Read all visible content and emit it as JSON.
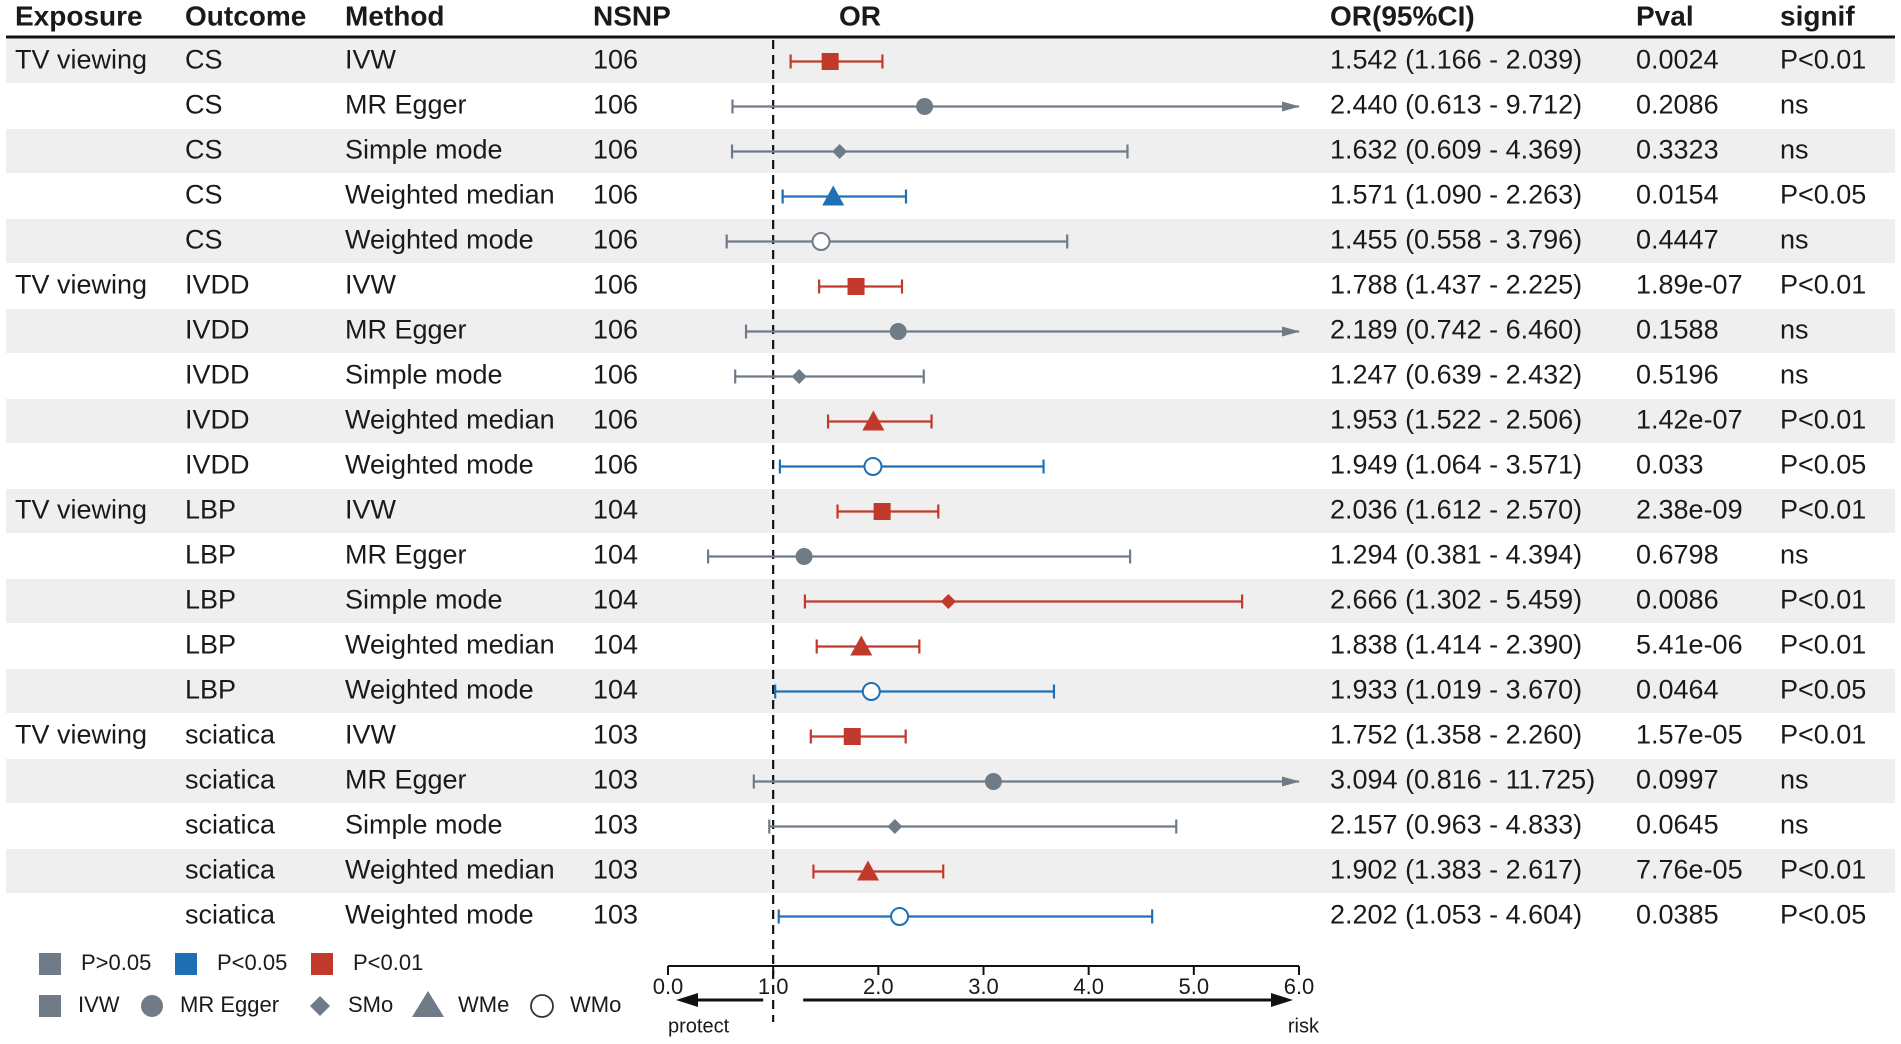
{
  "chart_data": {
    "type": "forest",
    "headers": {
      "exposure": "Exposure",
      "outcome": "Outcome",
      "method": "Method",
      "nsnp": "NSNP",
      "or": "OR",
      "or_ci": "OR(95%CI)",
      "pval": "Pval",
      "signif": "signif"
    },
    "rows": [
      {
        "exposure": "TV viewing",
        "outcome": "CS",
        "method": "IVW",
        "nsnp": "106",
        "or": 1.542,
        "lo": 1.166,
        "hi": 2.039,
        "or_ci": "1.542 (1.166 - 2.039)",
        "pval": "0.0024",
        "signif": "P<0.01",
        "shape": "square",
        "sig_class": "p01"
      },
      {
        "exposure": "",
        "outcome": "CS",
        "method": "MR Egger",
        "nsnp": "106",
        "or": 2.44,
        "lo": 0.613,
        "hi": 9.712,
        "or_ci": "2.440 (0.613 - 9.712)",
        "pval": "0.2086",
        "signif": "ns",
        "shape": "circle",
        "sig_class": "ns"
      },
      {
        "exposure": "",
        "outcome": "CS",
        "method": "Simple mode",
        "nsnp": "106",
        "or": 1.632,
        "lo": 0.609,
        "hi": 4.369,
        "or_ci": "1.632 (0.609 - 4.369)",
        "pval": "0.3323",
        "signif": "ns",
        "shape": "diamond",
        "sig_class": "ns"
      },
      {
        "exposure": "",
        "outcome": "CS",
        "method": "Weighted median",
        "nsnp": "106",
        "or": 1.571,
        "lo": 1.09,
        "hi": 2.263,
        "or_ci": "1.571 (1.090 - 2.263)",
        "pval": "0.0154",
        "signif": "P<0.05",
        "shape": "triangle",
        "sig_class": "p05"
      },
      {
        "exposure": "",
        "outcome": "CS",
        "method": "Weighted mode",
        "nsnp": "106",
        "or": 1.455,
        "lo": 0.558,
        "hi": 3.796,
        "or_ci": "1.455 (0.558 - 3.796)",
        "pval": "0.4447",
        "signif": "ns",
        "shape": "open",
        "sig_class": "ns"
      },
      {
        "exposure": "TV viewing",
        "outcome": "IVDD",
        "method": "IVW",
        "nsnp": "106",
        "or": 1.788,
        "lo": 1.437,
        "hi": 2.225,
        "or_ci": "1.788 (1.437 - 2.225)",
        "pval": "1.89e-07",
        "signif": "P<0.01",
        "shape": "square",
        "sig_class": "p01"
      },
      {
        "exposure": "",
        "outcome": "IVDD",
        "method": "MR Egger",
        "nsnp": "106",
        "or": 2.189,
        "lo": 0.742,
        "hi": 6.46,
        "or_ci": "2.189 (0.742 - 6.460)",
        "pval": "0.1588",
        "signif": "ns",
        "shape": "circle",
        "sig_class": "ns"
      },
      {
        "exposure": "",
        "outcome": "IVDD",
        "method": "Simple mode",
        "nsnp": "106",
        "or": 1.247,
        "lo": 0.639,
        "hi": 2.432,
        "or_ci": "1.247 (0.639 - 2.432)",
        "pval": "0.5196",
        "signif": "ns",
        "shape": "diamond",
        "sig_class": "ns"
      },
      {
        "exposure": "",
        "outcome": "IVDD",
        "method": "Weighted median",
        "nsnp": "106",
        "or": 1.953,
        "lo": 1.522,
        "hi": 2.506,
        "or_ci": "1.953 (1.522 - 2.506)",
        "pval": "1.42e-07",
        "signif": "P<0.01",
        "shape": "triangle",
        "sig_class": "p01"
      },
      {
        "exposure": "",
        "outcome": "IVDD",
        "method": "Weighted mode",
        "nsnp": "106",
        "or": 1.949,
        "lo": 1.064,
        "hi": 3.571,
        "or_ci": "1.949 (1.064 - 3.571)",
        "pval": "0.033",
        "signif": "P<0.05",
        "shape": "open",
        "sig_class": "p05"
      },
      {
        "exposure": "TV viewing",
        "outcome": "LBP",
        "method": "IVW",
        "nsnp": "104",
        "or": 2.036,
        "lo": 1.612,
        "hi": 2.57,
        "or_ci": "2.036 (1.612 - 2.570)",
        "pval": "2.38e-09",
        "signif": "P<0.01",
        "shape": "square",
        "sig_class": "p01"
      },
      {
        "exposure": "",
        "outcome": "LBP",
        "method": "MR Egger",
        "nsnp": "104",
        "or": 1.294,
        "lo": 0.381,
        "hi": 4.394,
        "or_ci": "1.294 (0.381 - 4.394)",
        "pval": "0.6798",
        "signif": "ns",
        "shape": "circle",
        "sig_class": "ns"
      },
      {
        "exposure": "",
        "outcome": "LBP",
        "method": "Simple mode",
        "nsnp": "104",
        "or": 2.666,
        "lo": 1.302,
        "hi": 5.459,
        "or_ci": "2.666 (1.302 - 5.459)",
        "pval": "0.0086",
        "signif": "P<0.01",
        "shape": "diamond",
        "sig_class": "p01"
      },
      {
        "exposure": "",
        "outcome": "LBP",
        "method": "Weighted median",
        "nsnp": "104",
        "or": 1.838,
        "lo": 1.414,
        "hi": 2.39,
        "or_ci": "1.838 (1.414 - 2.390)",
        "pval": "5.41e-06",
        "signif": "P<0.01",
        "shape": "triangle",
        "sig_class": "p01"
      },
      {
        "exposure": "",
        "outcome": "LBP",
        "method": "Weighted mode",
        "nsnp": "104",
        "or": 1.933,
        "lo": 1.019,
        "hi": 3.67,
        "or_ci": "1.933 (1.019 - 3.670)",
        "pval": "0.0464",
        "signif": "P<0.05",
        "shape": "open",
        "sig_class": "p05"
      },
      {
        "exposure": "TV viewing",
        "outcome": "sciatica",
        "method": "IVW",
        "nsnp": "103",
        "or": 1.752,
        "lo": 1.358,
        "hi": 2.26,
        "or_ci": "1.752 (1.358 - 2.260)",
        "pval": "1.57e-05",
        "signif": "P<0.01",
        "shape": "square",
        "sig_class": "p01"
      },
      {
        "exposure": "",
        "outcome": "sciatica",
        "method": "MR Egger",
        "nsnp": "103",
        "or": 3.094,
        "lo": 0.816,
        "hi": 11.725,
        "or_ci": "3.094 (0.816 - 11.725)",
        "pval": "0.0997",
        "signif": "ns",
        "shape": "circle",
        "sig_class": "ns"
      },
      {
        "exposure": "",
        "outcome": "sciatica",
        "method": "Simple mode",
        "nsnp": "103",
        "or": 2.157,
        "lo": 0.963,
        "hi": 4.833,
        "or_ci": "2.157 (0.963 - 4.833)",
        "pval": "0.0645",
        "signif": "ns",
        "shape": "diamond",
        "sig_class": "ns"
      },
      {
        "exposure": "",
        "outcome": "sciatica",
        "method": "Weighted median",
        "nsnp": "103",
        "or": 1.902,
        "lo": 1.383,
        "hi": 2.617,
        "or_ci": "1.902 (1.383 - 2.617)",
        "pval": "7.76e-05",
        "signif": "P<0.01",
        "shape": "triangle",
        "sig_class": "p01"
      },
      {
        "exposure": "",
        "outcome": "sciatica",
        "method": "Weighted mode",
        "nsnp": "103",
        "or": 2.202,
        "lo": 1.053,
        "hi": 4.604,
        "or_ci": "2.202 (1.053 - 4.604)",
        "pval": "0.0385",
        "signif": "P<0.05",
        "shape": "open",
        "sig_class": "p05"
      }
    ],
    "xlim": [
      0,
      6
    ],
    "x_ticks": [
      "0.0",
      "1.0",
      "2.0",
      "3.0",
      "4.0",
      "5.0",
      "6.0"
    ],
    "reference_line": 1.0,
    "arrow_left_label": "protect",
    "arrow_right_label": "risk",
    "legend_color": [
      {
        "label": "P>0.05",
        "sig_class": "ns"
      },
      {
        "label": "P<0.05",
        "sig_class": "p05"
      },
      {
        "label": "P<0.01",
        "sig_class": "p01"
      }
    ],
    "legend_shape": [
      {
        "label": "IVW",
        "shape": "square"
      },
      {
        "label": "MR Egger",
        "shape": "circle"
      },
      {
        "label": "SMo",
        "shape": "diamond"
      },
      {
        "label": "WMe",
        "shape": "triangle"
      },
      {
        "label": "WMo",
        "shape": "open"
      }
    ]
  },
  "colors": {
    "ns": "#6f7b86",
    "p05": "#1f6fb5",
    "p01": "#c0392b",
    "stripe": "#efefef",
    "text": "#1a1a1a"
  }
}
